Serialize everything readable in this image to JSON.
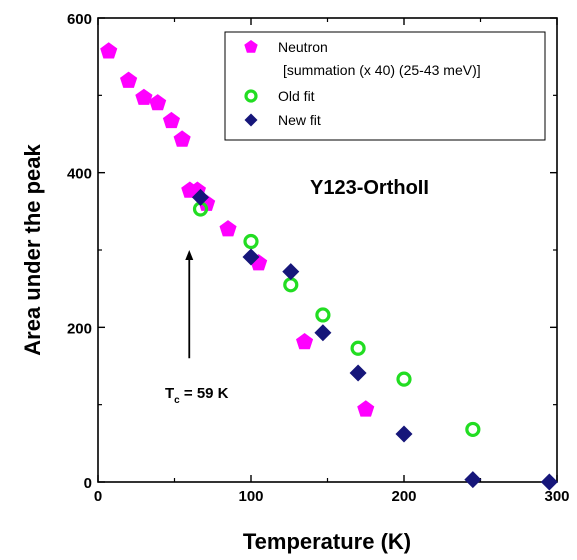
{
  "chart_data": {
    "type": "scatter",
    "xlabel": "Temperature (K)",
    "ylabel": "Area under the peak",
    "xlim": [
      0,
      300
    ],
    "ylim": [
      0,
      600
    ],
    "xticks": [
      "0",
      "100",
      "200",
      "300"
    ],
    "yticks": [
      "0",
      "200",
      "400",
      "600"
    ],
    "grid": false,
    "legend_position": "top-right",
    "series": [
      {
        "name": "Neutron",
        "name_line2": "[summation (x 40) (25-43 meV)]",
        "marker": "pentagon",
        "color": "#ff00ff",
        "points": [
          [
            7,
            557
          ],
          [
            20,
            519
          ],
          [
            30,
            497
          ],
          [
            39,
            490
          ],
          [
            48,
            467
          ],
          [
            55,
            443
          ],
          [
            60,
            377
          ],
          [
            65,
            377
          ],
          [
            71,
            360
          ],
          [
            85,
            327
          ],
          [
            105,
            283
          ],
          [
            135,
            181
          ],
          [
            175,
            94
          ]
        ]
      },
      {
        "name": "Old fit",
        "marker": "open-circle",
        "color": "#22dd22",
        "points": [
          [
            67,
            353
          ],
          [
            100,
            311
          ],
          [
            126,
            255
          ],
          [
            147,
            216
          ],
          [
            170,
            173
          ],
          [
            200,
            133
          ],
          [
            245,
            68
          ]
        ]
      },
      {
        "name": "New fit",
        "marker": "diamond",
        "color": "#16167a",
        "points": [
          [
            67,
            368
          ],
          [
            100,
            291
          ],
          [
            126,
            272
          ],
          [
            147,
            193
          ],
          [
            170,
            141
          ],
          [
            200,
            62
          ],
          [
            245,
            3
          ],
          [
            295,
            0
          ]
        ]
      }
    ],
    "annotations": {
      "sample_label": "Y123-OrthoII",
      "tc_main": "T",
      "tc_sub": "c",
      "tc_rest": " = 59 K",
      "arrow_x": 59,
      "arrow_y_from": 160,
      "arrow_y_to": 300
    }
  }
}
